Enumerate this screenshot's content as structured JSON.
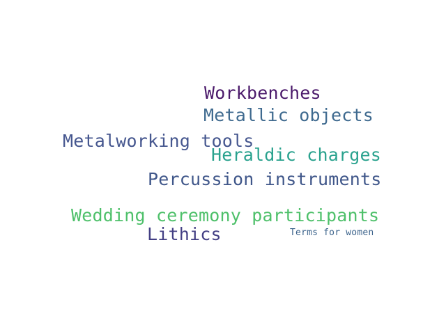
{
  "words": [
    {
      "text": "Workbenches",
      "color": "#4b1a6b"
    },
    {
      "text": "Metallic objects",
      "color": "#3f6a8f"
    },
    {
      "text": "Metalworking tools",
      "color": "#46578f"
    },
    {
      "text": "Heraldic charges",
      "color": "#2aa28e"
    },
    {
      "text": "Percussion instruments",
      "color": "#40578a"
    },
    {
      "text": "Wedding ceremony participants",
      "color": "#4ec06a"
    },
    {
      "text": "Lithics",
      "color": "#433f84"
    },
    {
      "text": "Terms for women",
      "color": "#3d648c"
    }
  ]
}
